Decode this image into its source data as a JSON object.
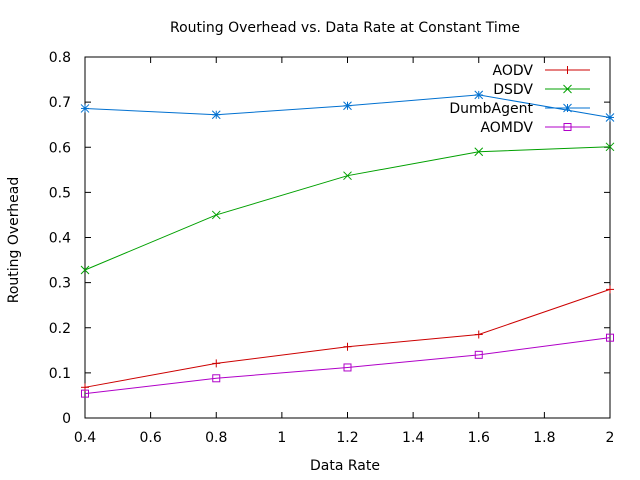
{
  "chart_data": {
    "type": "line",
    "title": "Routing Overhead vs. Data Rate at Constant Time",
    "xlabel": "Data Rate",
    "ylabel": "Routing Overhead",
    "xlim": [
      0.4,
      2.0
    ],
    "ylim": [
      0,
      0.8
    ],
    "xticks": [
      "0.4",
      "0.6",
      "0.8",
      "1",
      "1.2",
      "1.4",
      "1.6",
      "1.8",
      "2"
    ],
    "yticks": [
      "0",
      "0.1",
      "0.2",
      "0.3",
      "0.4",
      "0.5",
      "0.6",
      "0.7",
      "0.8"
    ],
    "grid": false,
    "legend_position": "top-right",
    "x": [
      0.4,
      0.8,
      1.2,
      1.6,
      2.0
    ],
    "series": [
      {
        "name": "AODV",
        "marker": "plus",
        "color": "#cc0000",
        "values": [
          0.068,
          0.121,
          0.158,
          0.185,
          0.285
        ]
      },
      {
        "name": "DSDV",
        "marker": "cross",
        "color": "#00a000",
        "values": [
          0.328,
          0.45,
          0.537,
          0.59,
          0.601
        ]
      },
      {
        "name": "DumbAgent",
        "marker": "star",
        "color": "#0070d0",
        "values": [
          0.686,
          0.672,
          0.692,
          0.716,
          0.666
        ]
      },
      {
        "name": "AOMDV",
        "marker": "square",
        "color": "#b000c8",
        "values": [
          0.054,
          0.088,
          0.112,
          0.14,
          0.178
        ]
      }
    ]
  }
}
